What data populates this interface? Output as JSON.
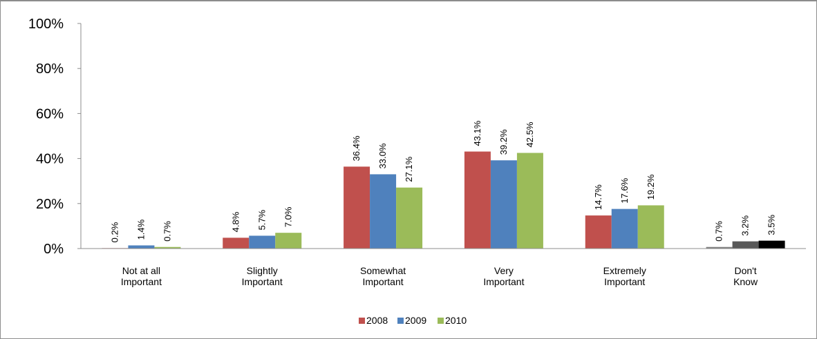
{
  "chart_data": {
    "type": "bar",
    "categories": [
      [
        "Not at all",
        "Important"
      ],
      [
        "Slightly",
        "Important"
      ],
      [
        "Somewhat",
        "Important"
      ],
      [
        "Very",
        "Important"
      ],
      [
        "Extremely",
        "Important"
      ],
      [
        "Don't",
        "Know"
      ]
    ],
    "series": [
      {
        "name": "2008",
        "color": "#c0504d",
        "values": [
          0.2,
          4.8,
          36.4,
          43.1,
          14.7,
          0.7
        ],
        "labels": [
          "0.2%",
          "4.8%",
          "36.4%",
          "43.1%",
          "14.7%",
          "0.7%"
        ]
      },
      {
        "name": "2009",
        "color": "#4f81bd",
        "values": [
          1.4,
          5.7,
          33.0,
          39.2,
          17.6,
          3.2
        ],
        "labels": [
          "1.4%",
          "5.7%",
          "33.0%",
          "39.2%",
          "17.6%",
          "3.2%"
        ]
      },
      {
        "name": "2010",
        "color": "#9bbb59",
        "values": [
          0.7,
          7.0,
          27.1,
          42.5,
          19.2,
          3.5
        ],
        "labels": [
          "0.7%",
          "7.0%",
          "27.1%",
          "42.5%",
          "19.2%",
          "3.5%"
        ]
      }
    ],
    "last_category_colors": [
      "#7f7f7f",
      "#595959",
      "#000000"
    ],
    "y_ticks": [
      "0%",
      "20%",
      "40%",
      "60%",
      "80%",
      "100%"
    ],
    "ylim": [
      0,
      100
    ],
    "grid": false,
    "legend_position": "bottom"
  }
}
